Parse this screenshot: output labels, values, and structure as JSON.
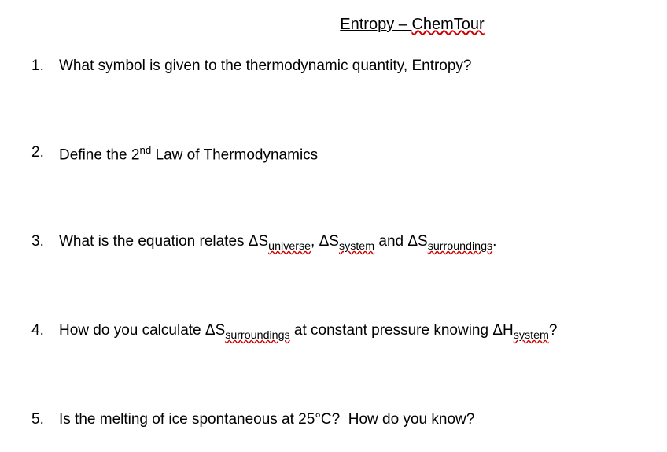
{
  "title": {
    "part1": "Entropy – ",
    "part2": "ChemTour"
  },
  "questions": [
    {
      "num": "1.",
      "text": "What symbol is given to the thermodynamic quantity, Entropy?"
    },
    {
      "num": "2.",
      "html": "Define the 2<sup>nd</sup> Law of Thermodynamics"
    },
    {
      "num": "3.",
      "html": "What is the equation relates ΔS<span class='sub wavy-red'>universe</span>, ΔS<span class='sub wavy-red'>system</span> and ΔS<span class='sub wavy-red'>surroundings</span>."
    },
    {
      "num": "4.",
      "html": "How do you calculate ΔS<span class='sub wavy-red'>surroundings</span> at constant pressure knowing ΔH<span class='sub wavy-red'>system</span>?"
    },
    {
      "num": "5.",
      "html": "Is the melting of ice spontaneous at 25°C?&nbsp;&nbsp;How do you know?"
    }
  ],
  "colors": {
    "background": "#ffffff",
    "text": "#000000",
    "wavy_underline": "#cc0000"
  },
  "typography": {
    "title_fontsize": 20,
    "question_fontsize": 19,
    "font_family": "Arial"
  }
}
